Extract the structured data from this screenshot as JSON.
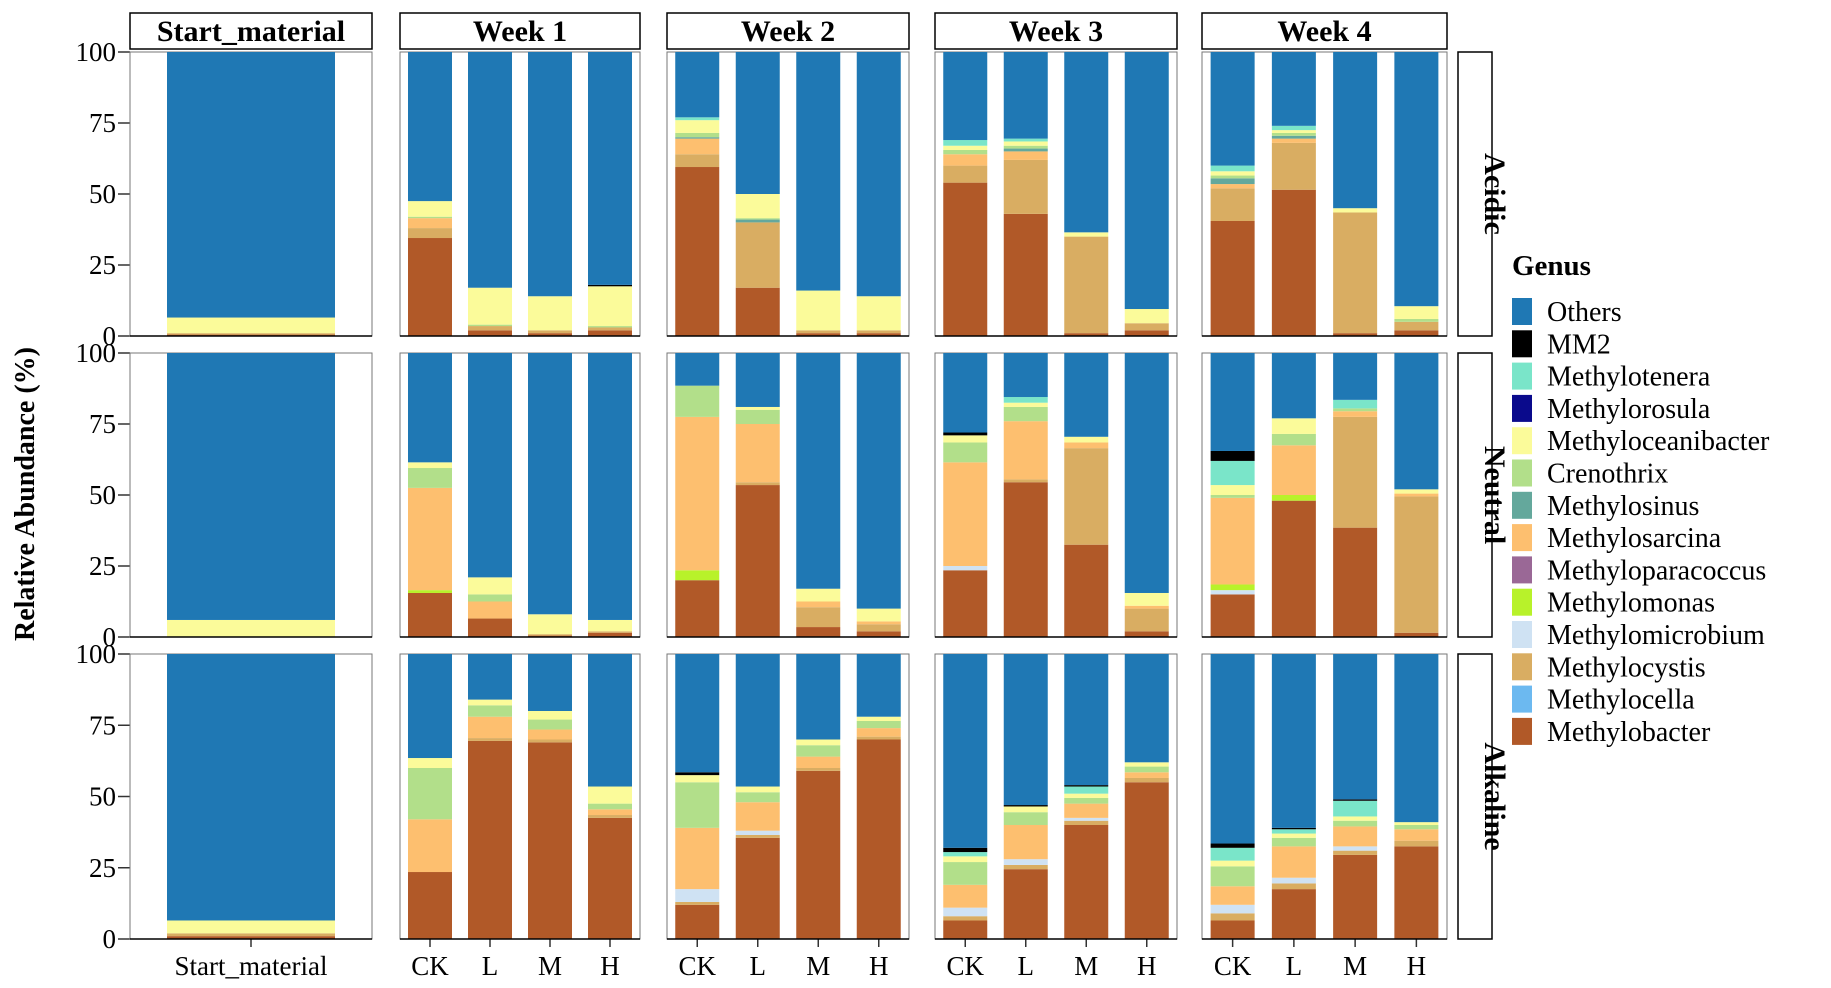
{
  "chart_data": {
    "type": "bar",
    "stacked": true,
    "ylabel": "Relative Abundance (%)",
    "ylim": [
      0,
      100
    ],
    "yticks": [
      0,
      25,
      50,
      75,
      100
    ],
    "legend_title": "Genus",
    "legend_position": "right",
    "genera": [
      {
        "name": "Others",
        "color": "#1f78b4"
      },
      {
        "name": "MM2",
        "color": "#000000"
      },
      {
        "name": "Methylotenera",
        "color": "#7ae5c9"
      },
      {
        "name": "Methylorosula",
        "color": "#0a0a8c"
      },
      {
        "name": "Methyloceanibacter",
        "color": "#fbfb9a"
      },
      {
        "name": "Crenothrix",
        "color": "#b2df8a"
      },
      {
        "name": "Methylosinus",
        "color": "#64a89c"
      },
      {
        "name": "Methylosarcina",
        "color": "#fdbf6f"
      },
      {
        "name": "Methyloparacoccus",
        "color": "#9a6896"
      },
      {
        "name": "Methylomonas",
        "color": "#b8f22a"
      },
      {
        "name": "Methylomicrobium",
        "color": "#cfe2f3"
      },
      {
        "name": "Methylocystis",
        "color": "#d9ad62"
      },
      {
        "name": "Methylocella",
        "color": "#6cb9f0"
      },
      {
        "name": "Methylobacter",
        "color": "#b15928"
      }
    ],
    "stack_order_bottom_to_top": [
      "Methylobacter",
      "Methylocella",
      "Methylocystis",
      "Methylomicrobium",
      "Methylomonas",
      "Methyloparacoccus",
      "Methylosarcina",
      "Methylosinus",
      "Crenothrix",
      "Methyloceanibacter",
      "Methylorosula",
      "Methylotenera",
      "MM2",
      "Others"
    ],
    "columns": [
      "Start_material",
      "Week 1",
      "Week 2",
      "Week 3",
      "Week 4"
    ],
    "rows": [
      "Acidic",
      "Neutral",
      "Alkaline"
    ],
    "treatments": [
      "CK",
      "L",
      "M",
      "H"
    ],
    "start_material_label": "Start_material",
    "panels": {
      "Acidic": {
        "Start_material": {
          "Start_material": {
            "Methylobacter": 0.5,
            "Methylocystis": 0.5,
            "Methyloceanibacter": 5.5
          }
        },
        "Week 1": {
          "CK": {
            "Methylobacter": 34.5,
            "Methylocystis": 3.5,
            "Methylosarcina": 3.5,
            "Crenothrix": 0.5,
            "Methyloceanibacter": 5.5
          },
          "L": {
            "Methylobacter": 2,
            "Methylocystis": 1.5,
            "Crenothrix": 0.5,
            "Methyloceanibacter": 13
          },
          "M": {
            "Methylobacter": 1,
            "Methylocystis": 1,
            "Methyloceanibacter": 12
          },
          "H": {
            "Methylobacter": 2,
            "Methylocystis": 1,
            "Crenothrix": 0.5,
            "Methyloceanibacter": 14,
            "MM2": 0.5
          }
        },
        "Week 2": {
          "CK": {
            "Methylobacter": 59.5,
            "Methylocystis": 4.5,
            "Methylosarcina": 5.5,
            "Methylosinus": 0.5,
            "Crenothrix": 1.5,
            "Methyloceanibacter": 4.5,
            "Methylotenera": 1
          },
          "L": {
            "Methylobacter": 17,
            "Methylocystis": 23,
            "Methylosinus": 1,
            "Crenothrix": 0.5,
            "Methyloceanibacter": 8.5
          },
          "M": {
            "Methylobacter": 1,
            "Methylocystis": 1,
            "Methyloceanibacter": 14
          },
          "H": {
            "Methylobacter": 1,
            "Methylocystis": 1,
            "Methyloceanibacter": 12
          }
        },
        "Week 3": {
          "CK": {
            "Methylobacter": 54,
            "Methylocystis": 6,
            "Methylosarcina": 4,
            "Crenothrix": 1.5,
            "Methyloceanibacter": 1.5,
            "Methylotenera": 2
          },
          "L": {
            "Methylobacter": 43,
            "Methylocystis": 19,
            "Methylosarcina": 3,
            "Methylosinus": 1,
            "Crenothrix": 1,
            "Methyloceanibacter": 1.5,
            "Methylotenera": 1
          },
          "M": {
            "Methylobacter": 1,
            "Methylocystis": 34,
            "Methyloceanibacter": 1.5
          },
          "H": {
            "Methylobacter": 2,
            "Methylocystis": 2.5,
            "Methyloceanibacter": 5
          }
        },
        "Week 4": {
          "CK": {
            "Methylobacter": 40.5,
            "Methylocystis": 11.5,
            "Methylosarcina": 1.5,
            "Methylosinus": 2,
            "Crenothrix": 1,
            "Methyloceanibacter": 1.5,
            "Methylotenera": 2
          },
          "L": {
            "Methylobacter": 51.5,
            "Methylocystis": 16.5,
            "Methylosarcina": 1.5,
            "Methylosinus": 1,
            "Crenothrix": 1,
            "Methyloceanibacter": 1,
            "Methylotenera": 1.5
          },
          "M": {
            "Methylobacter": 1,
            "Methylocystis": 42.5,
            "Methyloceanibacter": 1.5
          },
          "H": {
            "Methylobacter": 2,
            "Methylocystis": 3,
            "Crenothrix": 1,
            "Methyloceanibacter": 4.5
          }
        }
      },
      "Neutral": {
        "Start_material": {
          "Start_material": {
            "Methyloceanibacter": 6
          }
        },
        "Week 1": {
          "CK": {
            "Methylobacter": 15.5,
            "Methylomonas": 1,
            "Methylosarcina": 36,
            "Crenothrix": 7,
            "Methyloceanibacter": 2
          },
          "L": {
            "Methylobacter": 6.5,
            "Methylosarcina": 6,
            "Crenothrix": 2.5,
            "Methyloceanibacter": 6
          },
          "M": {
            "Methylobacter": 0.5,
            "Methylocystis": 0.5,
            "Methyloceanibacter": 7
          },
          "H": {
            "Methylobacter": 1.5,
            "Methylocystis": 0.5,
            "Methyloceanibacter": 4
          }
        },
        "Week 2": {
          "CK": {
            "Methylobacter": 20,
            "Methylomonas": 3.5,
            "Methylosarcina": 54,
            "Crenothrix": 11
          },
          "L": {
            "Methylobacter": 53.5,
            "Methylocystis": 1,
            "Methylosarcina": 20.5,
            "Crenothrix": 5,
            "Methyloceanibacter": 1
          },
          "M": {
            "Methylobacter": 3.5,
            "Methylocystis": 7,
            "Methylosarcina": 2,
            "Methyloceanibacter": 4.5
          },
          "H": {
            "Methylobacter": 2,
            "Methylocystis": 2.5,
            "Methylosarcina": 1,
            "Methyloceanibacter": 4.5
          }
        },
        "Week 3": {
          "CK": {
            "Methylobacter": 23.5,
            "Methylomicrobium": 1.5,
            "Methylosarcina": 36.5,
            "Crenothrix": 7,
            "Methyloceanibacter": 2.5,
            "MM2": 1
          },
          "L": {
            "Methylobacter": 54.5,
            "Methylocystis": 1,
            "Methylosarcina": 20.5,
            "Crenothrix": 5,
            "Methyloceanibacter": 1.5,
            "Methylotenera": 2
          },
          "M": {
            "Methylobacter": 32.5,
            "Methylocystis": 34,
            "Methylosarcina": 2,
            "Methyloceanibacter": 2
          },
          "H": {
            "Methylobacter": 2,
            "Methylocystis": 8,
            "Methylosarcina": 1,
            "Methyloceanibacter": 4.5
          }
        },
        "Week 4": {
          "CK": {
            "Methylobacter": 15,
            "Methylomicrobium": 1.5,
            "Methylomonas": 2,
            "Methylosarcina": 30.5,
            "Crenothrix": 1,
            "Methyloceanibacter": 3.5,
            "Methylotenera": 8.5,
            "MM2": 3.5
          },
          "L": {
            "Methylobacter": 48,
            "Methylomonas": 2,
            "Methylosarcina": 17.5,
            "Crenothrix": 4,
            "Methyloceanibacter": 5.5
          },
          "M": {
            "Methylobacter": 38.5,
            "Methylocystis": 39,
            "Methylosarcina": 2,
            "Crenothrix": 1,
            "Methylotenera": 3
          },
          "H": {
            "Methylobacter": 1.5,
            "Methylocystis": 48,
            "Methylosarcina": 1,
            "Methyloceanibacter": 1.5
          }
        }
      },
      "Alkaline": {
        "Start_material": {
          "Start_material": {
            "Methylobacter": 1,
            "Methylocystis": 1,
            "Methyloceanibacter": 4.5
          }
        },
        "Week 1": {
          "CK": {
            "Methylobacter": 23.5,
            "Methylosarcina": 18.5,
            "Crenothrix": 18,
            "Methyloceanibacter": 3.5
          },
          "L": {
            "Methylobacter": 69.5,
            "Methylocystis": 1,
            "Methylosarcina": 7.5,
            "Crenothrix": 4,
            "Methyloceanibacter": 2
          },
          "M": {
            "Methylobacter": 69,
            "Methylocystis": 1,
            "Methylosarcina": 3.5,
            "Crenothrix": 3.5,
            "Methyloceanibacter": 3
          },
          "H": {
            "Methylobacter": 42.5,
            "Methylocystis": 1,
            "Methylosarcina": 2,
            "Crenothrix": 2,
            "Methyloceanibacter": 6
          }
        },
        "Week 2": {
          "CK": {
            "Methylobacter": 12,
            "Methylocystis": 1,
            "Methylomicrobium": 4.5,
            "Methylosarcina": 21.5,
            "Crenothrix": 16,
            "Methyloceanibacter": 2.5,
            "MM2": 1
          },
          "L": {
            "Methylobacter": 35.5,
            "Methylocystis": 1,
            "Methylomicrobium": 1.5,
            "Methylosarcina": 10,
            "Crenothrix": 3.5,
            "Methyloceanibacter": 2
          },
          "M": {
            "Methylobacter": 59,
            "Methylocystis": 1,
            "Methylosarcina": 4,
            "Crenothrix": 4,
            "Methyloceanibacter": 2
          },
          "H": {
            "Methylobacter": 70,
            "Methylocystis": 1,
            "Methylosarcina": 3,
            "Crenothrix": 2.5,
            "Methyloceanibacter": 1.5
          }
        },
        "Week 3": {
          "CK": {
            "Methylobacter": 6.5,
            "Methylocystis": 1.5,
            "Methylomicrobium": 3,
            "Methylosarcina": 8,
            "Crenothrix": 8,
            "Methyloceanibacter": 2,
            "Methylotenera": 1.5,
            "MM2": 1.5
          },
          "L": {
            "Methylobacter": 24.5,
            "Methylocystis": 1.5,
            "Methylomicrobium": 2,
            "Methylosarcina": 12,
            "Crenothrix": 4.5,
            "Methyloceanibacter": 2,
            "MM2": 0.5
          },
          "M": {
            "Methylobacter": 40,
            "Methylocystis": 1.5,
            "Methylomicrobium": 1,
            "Methylosarcina": 5,
            "Crenothrix": 2,
            "Methyloceanibacter": 1.5,
            "Methylotenera": 2.5,
            "MM2": 0.5
          },
          "H": {
            "Methylobacter": 55,
            "Methylocystis": 1.5,
            "Methylosarcina": 2,
            "Crenothrix": 2,
            "Methyloceanibacter": 1.5
          }
        },
        "Week 4": {
          "CK": {
            "Methylobacter": 6.5,
            "Methylocystis": 2.5,
            "Methylomicrobium": 3,
            "Methylosarcina": 6.5,
            "Crenothrix": 7,
            "Methyloceanibacter": 2,
            "Methylotenera": 4.5,
            "MM2": 1.5
          },
          "L": {
            "Methylobacter": 17.5,
            "Methylocystis": 2,
            "Methylomicrobium": 2,
            "Methylosarcina": 11,
            "Crenothrix": 3,
            "Methyloceanibacter": 1.5,
            "Methylotenera": 1.5,
            "MM2": 0.5
          },
          "M": {
            "Methylobacter": 29.5,
            "Methylocystis": 1.5,
            "Methylomicrobium": 1.5,
            "Methylosarcina": 7,
            "Crenothrix": 2,
            "Methyloceanibacter": 1.5,
            "Methylotenera": 5.5,
            "MM2": 0.5
          },
          "H": {
            "Methylobacter": 32.5,
            "Methylocystis": 2,
            "Methylosarcina": 4,
            "Crenothrix": 1.5,
            "Methyloceanibacter": 1
          }
        }
      }
    }
  }
}
